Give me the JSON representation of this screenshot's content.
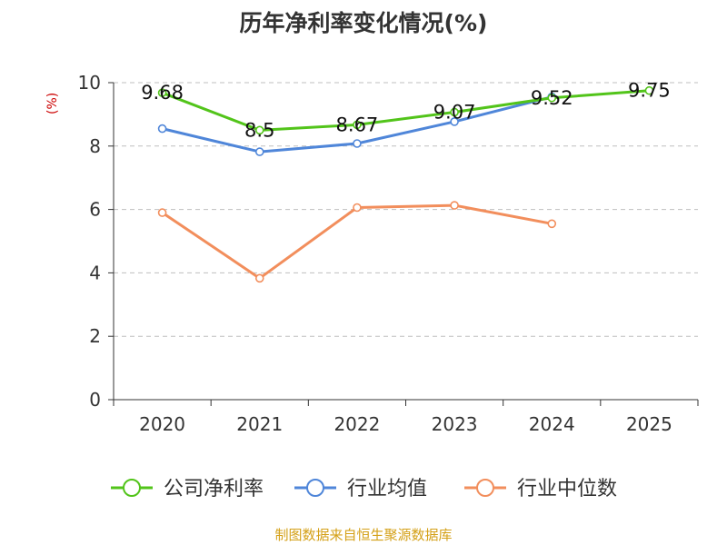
{
  "chart_data": {
    "type": "line",
    "title": "历年净利率变化情况(%)",
    "ylabel": "(%)",
    "xlabel": "",
    "categories": [
      "2020",
      "2021",
      "2022",
      "2023",
      "2024",
      "2025"
    ],
    "ylim": [
      0,
      10
    ],
    "yticks": [
      0,
      2,
      4,
      6,
      8,
      10
    ],
    "grid": true,
    "legend_position": "bottom",
    "series": [
      {
        "name": "公司净利率",
        "color": "#52c41a",
        "values": [
          9.68,
          8.5,
          8.67,
          9.07,
          9.52,
          9.75
        ],
        "data_labels": [
          "9.68",
          "8.5",
          "8.67",
          "9.07",
          "9.52",
          "9.75"
        ]
      },
      {
        "name": "行业均值",
        "color": "#4f86d9",
        "values": [
          8.55,
          7.82,
          8.08,
          8.77,
          9.55,
          null
        ]
      },
      {
        "name": "行业中位数",
        "color": "#f28e5c",
        "values": [
          5.9,
          3.83,
          6.06,
          6.13,
          5.55,
          null
        ]
      }
    ]
  },
  "source": "制图数据来自恒生聚源数据库"
}
